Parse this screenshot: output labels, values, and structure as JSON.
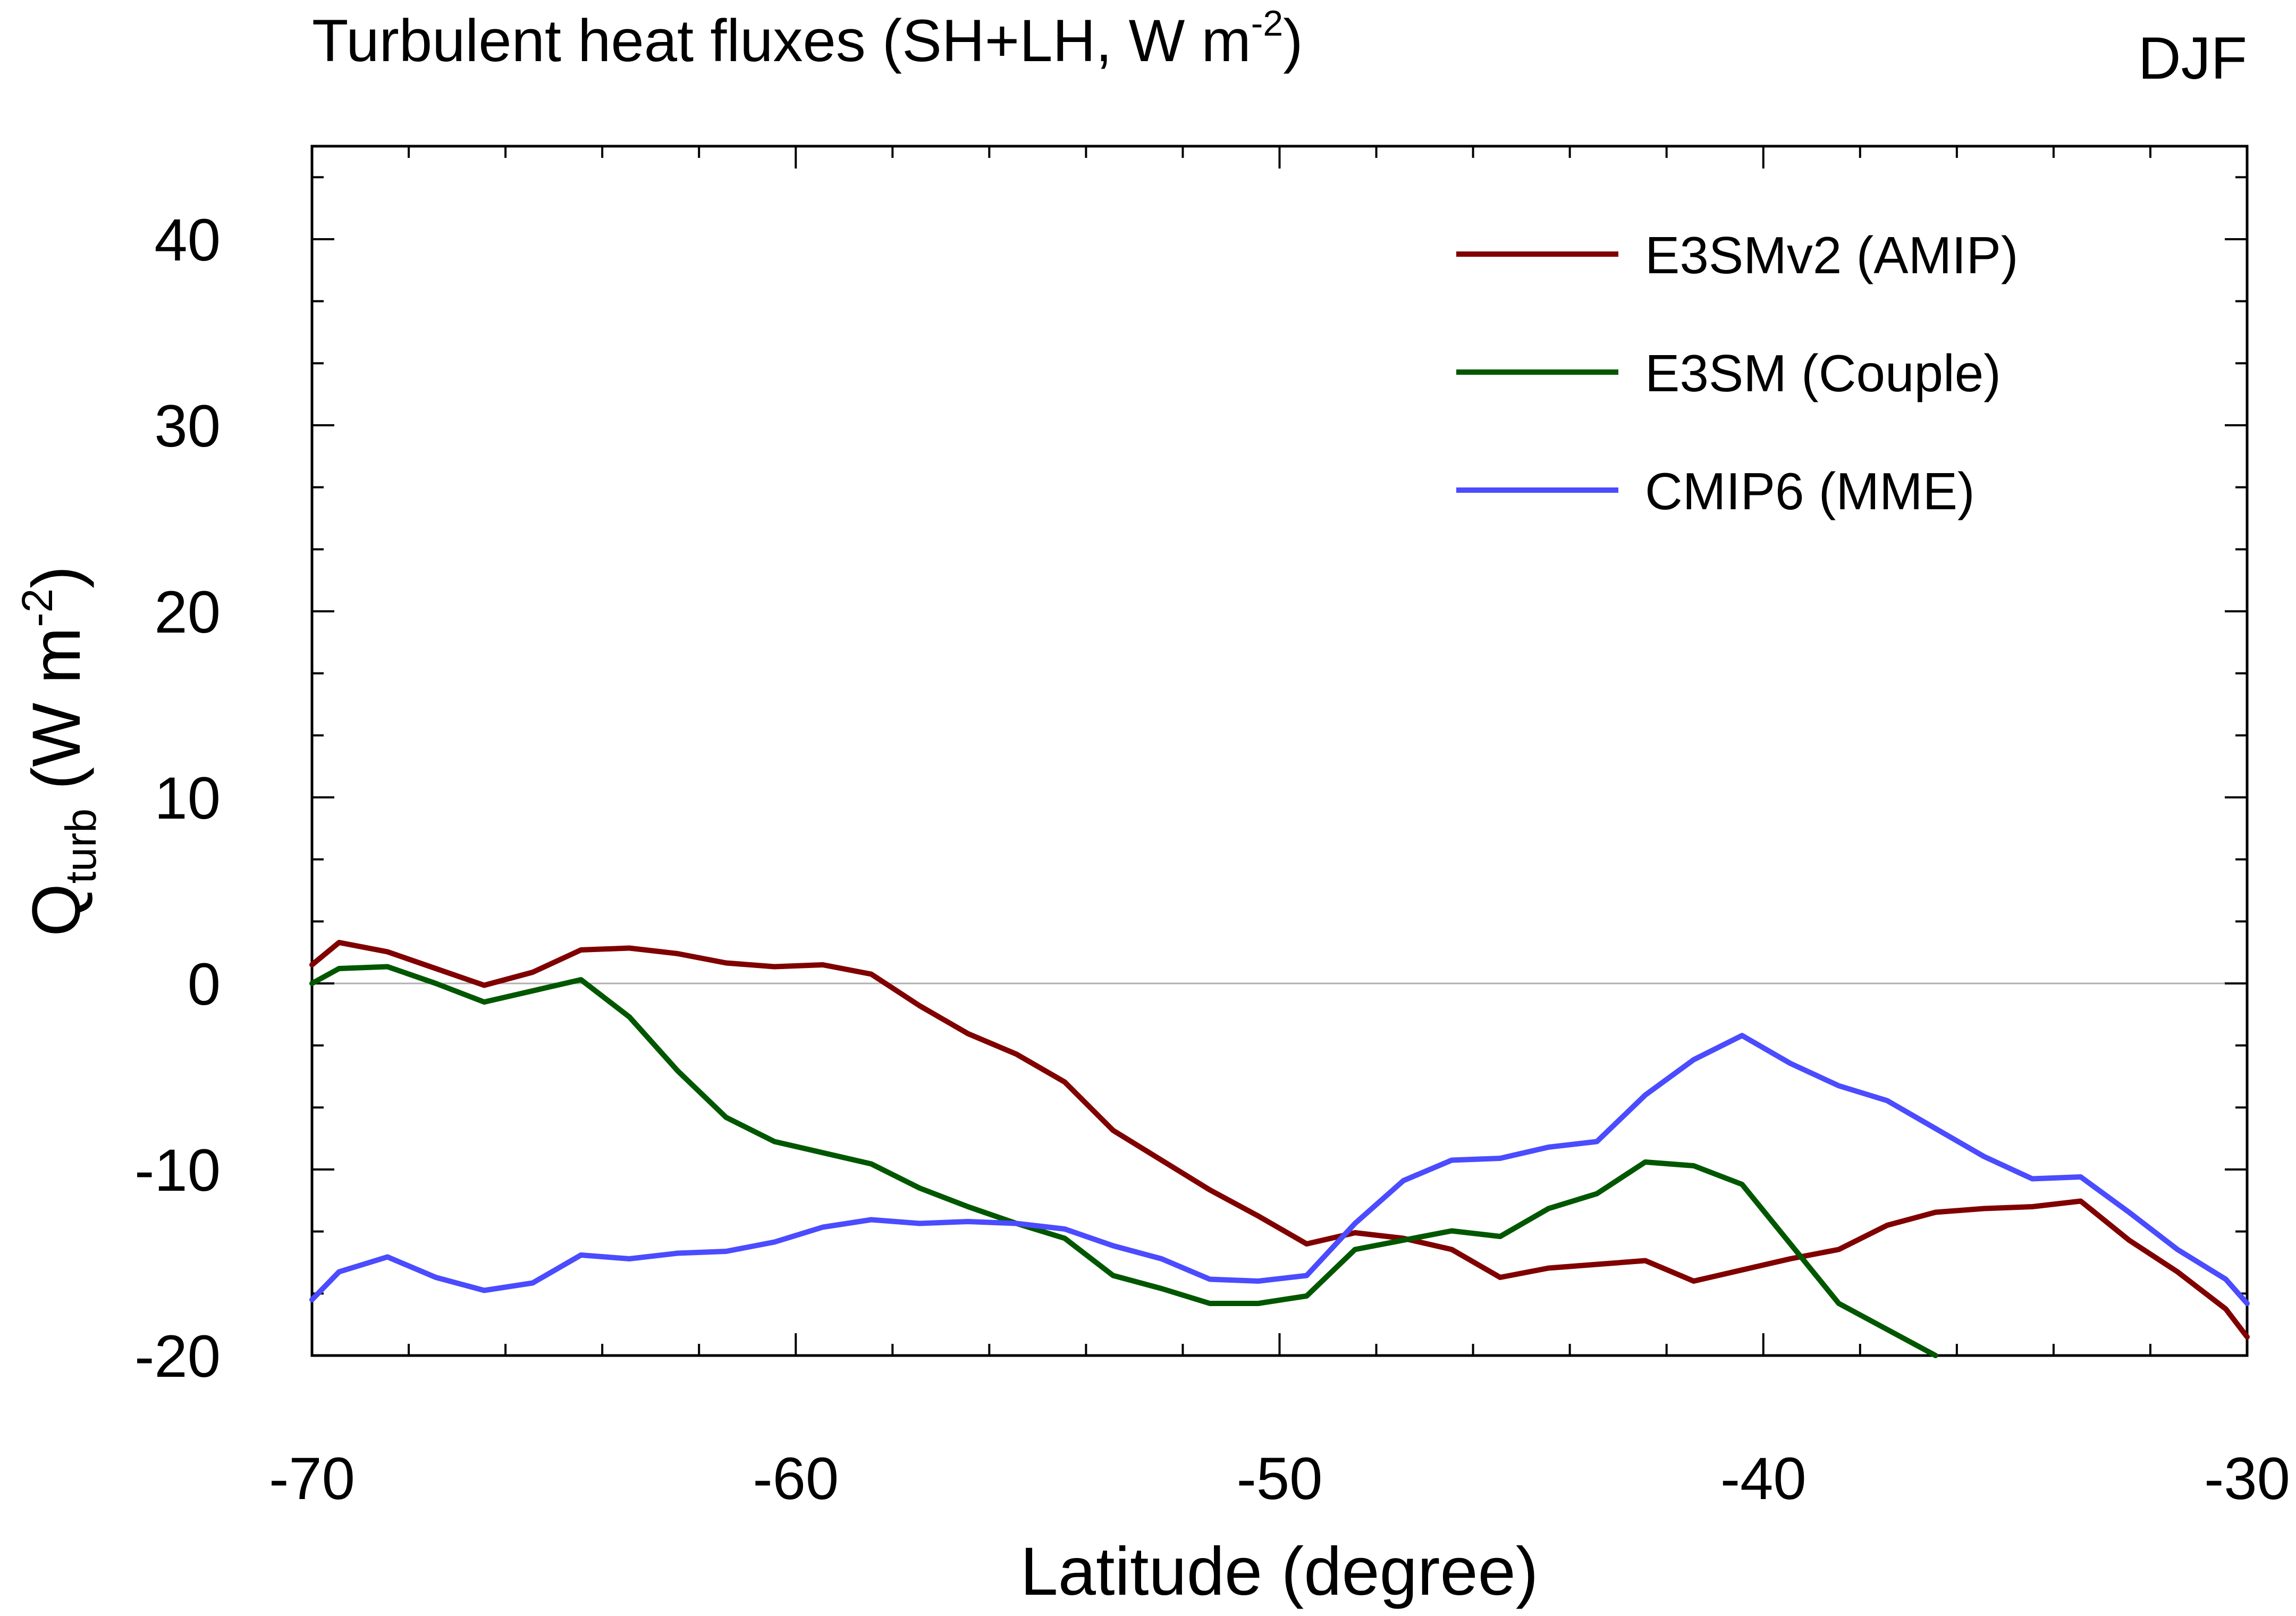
{
  "chart_data": {
    "type": "line",
    "title": "Turbulent heat fluxes (SH+LH, W m",
    "title_sup": "-2",
    "title_end": ")",
    "season": "DJF",
    "xlabel": "Latitude (degree)",
    "ylabel_main": "Q",
    "ylabel_sub": "turb",
    "ylabel_unit": " (W m",
    "ylabel_sup": "-2",
    "ylabel_end": ")",
    "xlim": [
      -70,
      -30
    ],
    "ylim": [
      -20,
      45
    ],
    "xticks": [
      -70,
      -60,
      -50,
      -40,
      -30
    ],
    "xtick_labels": [
      "-70",
      "-60",
      "-50",
      "-40",
      "-30"
    ],
    "yticks": [
      -20,
      -10,
      0,
      10,
      20,
      30,
      40
    ],
    "ytick_labels": [
      "-20",
      "-10",
      "0",
      "10",
      "20",
      "30",
      "40"
    ],
    "x": [
      -70,
      -69.44,
      -68.44,
      -67.44,
      -66.44,
      -65.44,
      -64.44,
      -63.44,
      -62.44,
      -61.44,
      -60.44,
      -59.44,
      -58.44,
      -57.44,
      -56.44,
      -55.44,
      -54.44,
      -53.44,
      -52.44,
      -51.44,
      -50.44,
      -49.44,
      -48.44,
      -47.44,
      -46.44,
      -45.44,
      -44.44,
      -43.44,
      -42.44,
      -41.44,
      -40.44,
      -39.44,
      -38.44,
      -37.44,
      -36.44,
      -35.44,
      -34.44,
      -33.44,
      -32.44,
      -31.44,
      -30.44,
      -30
    ],
    "series": [
      {
        "name": "E3SMv2 (AMIP)",
        "color": "#800000",
        "values": [
          1.0,
          2.2,
          1.7,
          0.8,
          -0.1,
          0.6,
          1.8,
          1.9,
          1.6,
          1.1,
          0.9,
          1.0,
          0.5,
          -1.2,
          -2.7,
          -3.8,
          -5.3,
          -7.9,
          -9.5,
          -11.1,
          -12.5,
          -14.0,
          -13.4,
          -13.7,
          -14.3,
          -15.8,
          -15.3,
          -15.1,
          -14.9,
          -16.0,
          -15.4,
          -14.8,
          -14.3,
          -13.0,
          -12.3,
          -12.1,
          -12.0,
          -11.7,
          -13.8,
          -15.5,
          -17.5,
          -19.0
        ]
      },
      {
        "name": "E3SM (Couple)",
        "color": "#005700",
        "values": [
          0.0,
          0.8,
          0.9,
          0.0,
          -1.0,
          -0.4,
          0.2,
          -1.8,
          -4.7,
          -7.2,
          -8.5,
          -9.1,
          -9.7,
          -11.0,
          -12.0,
          -12.9,
          -13.7,
          -15.7,
          -16.4,
          -17.2,
          -17.2,
          -16.8,
          -14.3,
          -13.8,
          -13.3,
          -13.6,
          -12.1,
          -11.3,
          -9.6,
          -9.8,
          -10.8,
          -14.0,
          -17.2,
          -18.6,
          -20.0,
          null,
          null,
          null,
          null,
          null,
          null,
          null
        ]
      },
      {
        "name": "CMIP6 (MME)",
        "color": "#4b4bff",
        "values": [
          -17.0,
          -15.5,
          -14.7,
          -15.8,
          -16.5,
          -16.1,
          -14.6,
          -14.8,
          -14.5,
          -14.4,
          -13.9,
          -13.1,
          -12.7,
          -12.9,
          -12.8,
          -12.9,
          -13.2,
          -14.1,
          -14.8,
          -15.9,
          -16.0,
          -15.7,
          -12.9,
          -10.6,
          -9.5,
          -9.4,
          -8.8,
          -8.5,
          -6.0,
          -4.1,
          -2.8,
          -4.3,
          -5.5,
          -6.3,
          -7.8,
          -9.3,
          -10.5,
          -10.4,
          -12.3,
          -14.3,
          -15.9,
          -17.2
        ]
      }
    ],
    "zero_line": true,
    "legend_position": "top-right"
  }
}
